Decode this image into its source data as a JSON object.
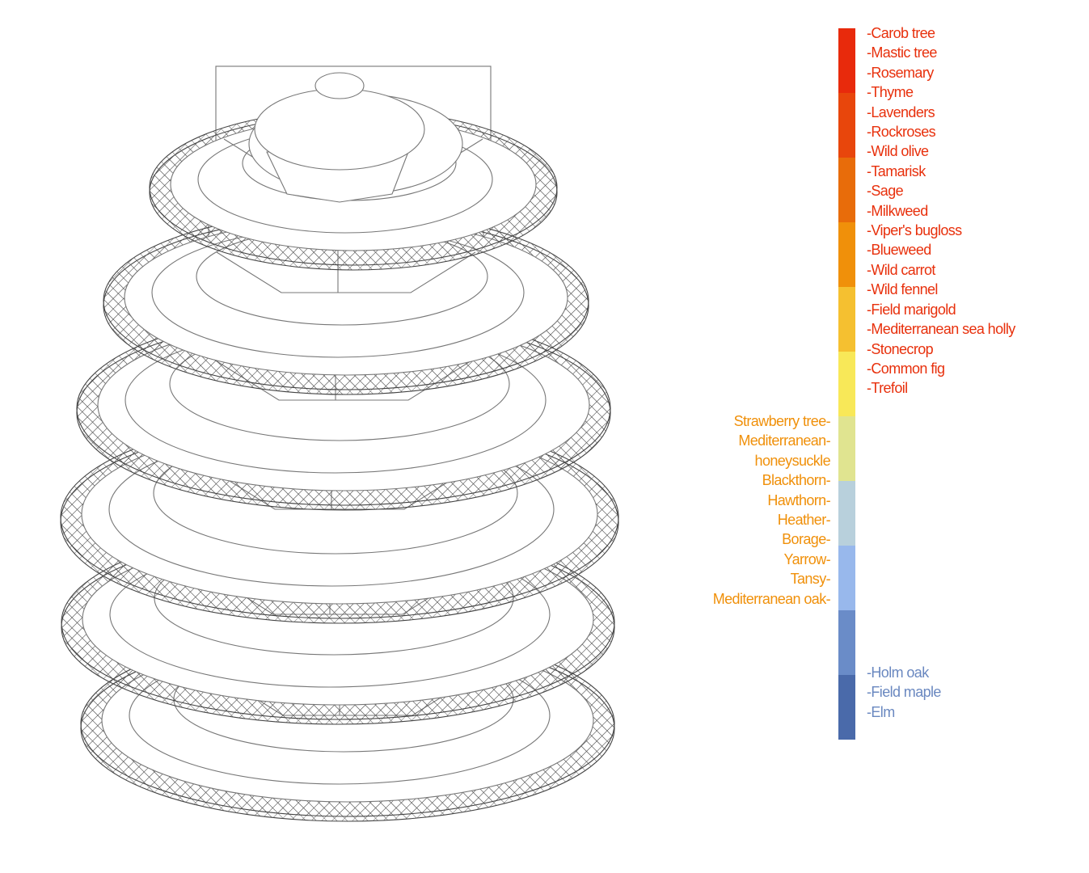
{
  "legend": {
    "colors": [
      "#e82a0c",
      "#e8460c",
      "#e86c0a",
      "#f0900a",
      "#f5c030",
      "#f8e858",
      "#e0e490",
      "#b8d0dc",
      "#98b8ec",
      "#6a8cc8",
      "#4a6aaa"
    ],
    "label_colors": {
      "red": "#e8300c",
      "orange": "#f0900a",
      "blue": "#6a88c0"
    },
    "right_top": [
      "-Carob tree",
      "-Mastic tree",
      "-Rosemary",
      "-Thyme",
      "-Lavenders",
      "-Rockroses",
      "-Wild olive",
      "-Tamarisk",
      "-Sage",
      "-Milkweed",
      "-Viper's bugloss",
      "-Blueweed",
      "-Wild carrot",
      "-Wild fennel",
      "-Field marigold",
      "-Mediterranean sea holly",
      "-Stonecrop",
      "-Common fig",
      "-Trefoil"
    ],
    "left_mid": [
      "Strawberry tree-",
      "Mediterranean-",
      "honeysuckle",
      "Blackthorn-",
      "Hawthorn-",
      "Heather-",
      "Borage-",
      "Yarrow-",
      "Tansy-",
      "Mediterranean oak-"
    ],
    "right_bottom": [
      "-Holm oak",
      "-Field maple",
      "-Elm"
    ]
  }
}
